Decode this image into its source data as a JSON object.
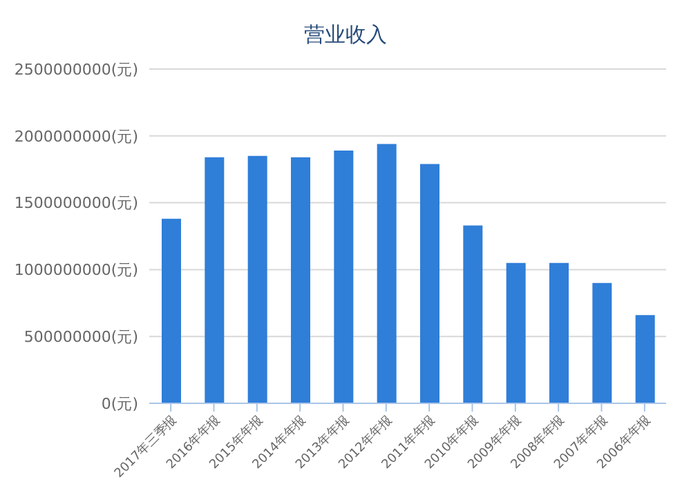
{
  "chart_data": {
    "type": "bar",
    "title": "营业收入",
    "categories": [
      "2017年三季报",
      "2016年年报",
      "2015年年报",
      "2014年年报",
      "2013年年报",
      "2012年年报",
      "2011年年报",
      "2010年年报",
      "2009年年报",
      "2008年年报",
      "2007年年报",
      "2006年年报"
    ],
    "values": [
      1380000000,
      1840000000,
      1850000000,
      1840000000,
      1890000000,
      1940000000,
      1790000000,
      1330000000,
      1050000000,
      1050000000,
      900000000,
      660000000
    ],
    "color": "#2f7ed8",
    "ylim": [
      0,
      2500000000
    ],
    "yticks": [
      {
        "value": 0,
        "label": "0(元)"
      },
      {
        "value": 500000000,
        "label": "500000000(元)"
      },
      {
        "value": 1000000000,
        "label": "1000000000(元)"
      },
      {
        "value": 1500000000,
        "label": "1500000000(元)"
      },
      {
        "value": 2000000000,
        "label": "2000000000(元)"
      },
      {
        "value": 2500000000,
        "label": "2500000000(元)"
      }
    ],
    "grid": "y"
  }
}
